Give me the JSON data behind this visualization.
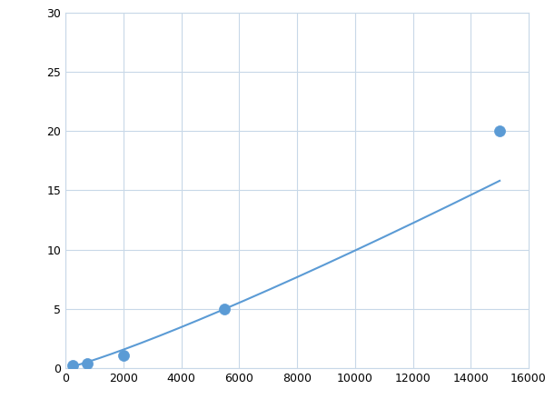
{
  "x": [
    250,
    750,
    2000,
    5500,
    15000
  ],
  "y": [
    0.2,
    0.4,
    1.1,
    5.0,
    20.0
  ],
  "xlim": [
    0,
    16000
  ],
  "ylim": [
    0,
    30
  ],
  "xticks": [
    0,
    2000,
    4000,
    6000,
    8000,
    10000,
    12000,
    14000,
    16000
  ],
  "yticks": [
    0,
    5,
    10,
    15,
    20,
    25,
    30
  ],
  "line_color": "#5b9bd5",
  "marker_color": "#5b9bd5",
  "marker_size": 5,
  "line_width": 1.5,
  "background_color": "#ffffff",
  "grid_color": "#c8d8e8"
}
